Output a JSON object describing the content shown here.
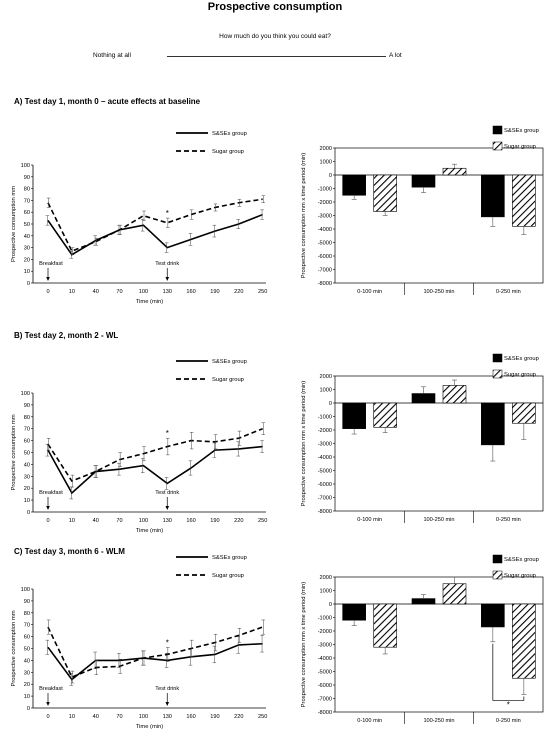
{
  "header": {
    "title": "Prospective consumption",
    "question": "How much do you think you could eat?",
    "scale_left": "Nothing at all",
    "scale_right": "A lot"
  },
  "panels": [
    {
      "title": "A) Test day 1, month 0 – acute effects at baseline"
    },
    {
      "title": "B) Test day 2, month 2 - WL"
    },
    {
      "title": "C) Test day 3, month 6 - WLM"
    }
  ],
  "colors": {
    "s_ses": "#000000",
    "sugar": "#000000"
  },
  "chart_data": [
    {
      "type": "line",
      "panel": "A",
      "x": [
        "0",
        "10",
        "40",
        "70",
        "100",
        "130",
        "160",
        "190",
        "220",
        "250"
      ],
      "xlabel": "Time (min)",
      "ylabel": "Prospective consumption mm",
      "ylim": [
        0,
        100
      ],
      "yticks": [
        0,
        10,
        20,
        30,
        40,
        50,
        60,
        70,
        80,
        90,
        100
      ],
      "series": [
        {
          "name": "S&SEs group",
          "style": "solid",
          "values": [
            53,
            24,
            36,
            45,
            49,
            30,
            37,
            44,
            50,
            58
          ],
          "errors": [
            4,
            3,
            4,
            4,
            5,
            4,
            5,
            5,
            4,
            4
          ]
        },
        {
          "name": "Sugar group",
          "style": "dashed",
          "values": [
            68,
            27,
            35,
            45,
            57,
            51,
            58,
            64,
            68,
            71
          ],
          "errors": [
            4,
            3,
            3,
            4,
            4,
            4,
            4,
            3,
            3,
            3
          ]
        }
      ],
      "markers": [
        {
          "label": "Breakfast",
          "x": "0"
        },
        {
          "label": "Test drink",
          "x": "130"
        }
      ],
      "significance": [
        {
          "x": "130",
          "symbol": "*"
        }
      ],
      "legend": "top-right"
    },
    {
      "type": "bar",
      "panel": "A",
      "categories": [
        "0-100 min",
        "100-250 min",
        "0-250 min"
      ],
      "ylabel": "Prospective consumption mm x time period (min)",
      "ylim": [
        -8000,
        2000
      ],
      "yticks": [
        2000,
        1000,
        0,
        -1000,
        -2000,
        -3000,
        -4000,
        -5000,
        -6000,
        -7000,
        -8000
      ],
      "series": [
        {
          "name": "S&SEs group",
          "fill": "solid",
          "values": [
            -1500,
            -900,
            -3100
          ],
          "errors": [
            300,
            400,
            700
          ]
        },
        {
          "name": "Sugar group",
          "fill": "hatched",
          "values": [
            -2700,
            500,
            -3800
          ],
          "errors": [
            300,
            300,
            600
          ]
        }
      ],
      "legend": "top-right"
    },
    {
      "type": "line",
      "panel": "B",
      "x": [
        "0",
        "10",
        "40",
        "70",
        "100",
        "130",
        "160",
        "190",
        "220",
        "250"
      ],
      "xlabel": "Time (min)",
      "ylabel": "Prospective consumption mm",
      "ylim": [
        0,
        100
      ],
      "yticks": [
        0,
        10,
        20,
        30,
        40,
        50,
        60,
        70,
        80,
        90,
        100
      ],
      "series": [
        {
          "name": "S&SEs group",
          "style": "solid",
          "values": [
            52,
            16,
            34,
            36,
            39,
            24,
            37,
            52,
            53,
            55
          ],
          "errors": [
            5,
            5,
            5,
            5,
            6,
            5,
            6,
            6,
            6,
            5
          ]
        },
        {
          "name": "Sugar group",
          "style": "dashed",
          "values": [
            57,
            26,
            34,
            44,
            49,
            55,
            60,
            59,
            62,
            70
          ],
          "errors": [
            5,
            5,
            5,
            6,
            6,
            7,
            7,
            6,
            6,
            5
          ]
        }
      ],
      "markers": [
        {
          "label": "Breakfast",
          "x": "0"
        },
        {
          "label": "Test drink",
          "x": "130"
        }
      ],
      "significance": [
        {
          "x": "130",
          "symbol": "*"
        }
      ],
      "legend": "top-right"
    },
    {
      "type": "bar",
      "panel": "B",
      "categories": [
        "0-100 min",
        "100-250 min",
        "0-250 min"
      ],
      "ylabel": "Prospective consumption mm x time period (min)",
      "ylim": [
        -8000,
        2000
      ],
      "yticks": [
        2000,
        1000,
        0,
        -1000,
        -2000,
        -3000,
        -4000,
        -5000,
        -6000,
        -7000,
        -8000
      ],
      "series": [
        {
          "name": "S&SEs group",
          "fill": "solid",
          "values": [
            -1900,
            700,
            -3100
          ],
          "errors": [
            400,
            500,
            1200
          ]
        },
        {
          "name": "Sugar group",
          "fill": "hatched",
          "values": [
            -1800,
            1300,
            -1500
          ],
          "errors": [
            400,
            400,
            1200
          ]
        }
      ],
      "legend": "top-right"
    },
    {
      "type": "line",
      "panel": "C",
      "x": [
        "0",
        "10",
        "40",
        "70",
        "100",
        "130",
        "160",
        "190",
        "220",
        "250"
      ],
      "xlabel": "Time (min)",
      "ylabel": "Prospective consumption mm",
      "ylim": [
        0,
        100
      ],
      "yticks": [
        0,
        10,
        20,
        30,
        40,
        50,
        60,
        70,
        80,
        90,
        100
      ],
      "series": [
        {
          "name": "S&SEs group",
          "style": "solid",
          "values": [
            51,
            24,
            40,
            40,
            42,
            40,
            43,
            45,
            53,
            54
          ],
          "errors": [
            6,
            5,
            7,
            6,
            6,
            6,
            7,
            7,
            7,
            7
          ]
        },
        {
          "name": "Sugar group",
          "style": "dashed",
          "values": [
            68,
            26,
            34,
            35,
            42,
            45,
            50,
            55,
            61,
            68
          ],
          "errors": [
            6,
            5,
            6,
            6,
            6,
            6,
            7,
            7,
            6,
            6
          ]
        }
      ],
      "markers": [
        {
          "label": "Breakfast",
          "x": "0"
        },
        {
          "label": "Test drink",
          "x": "130"
        }
      ],
      "significance": [
        {
          "x": "130",
          "symbol": "*"
        }
      ],
      "legend": "top-right"
    },
    {
      "type": "bar",
      "panel": "C",
      "categories": [
        "0-100 min",
        "100-250 min",
        "0-250 min"
      ],
      "ylabel": "Prospective consumption mm x time period (min)",
      "ylim": [
        -8000,
        2000
      ],
      "yticks": [
        2000,
        1000,
        0,
        -1000,
        -2000,
        -3000,
        -4000,
        -5000,
        -6000,
        -7000,
        -8000
      ],
      "series": [
        {
          "name": "S&SEs group",
          "fill": "solid",
          "values": [
            -1200,
            400,
            -1700
          ],
          "errors": [
            400,
            300,
            1100
          ]
        },
        {
          "name": "Sugar group",
          "fill": "hatched",
          "values": [
            -3200,
            1500,
            -5500
          ],
          "errors": [
            500,
            500,
            1200
          ]
        }
      ],
      "significance": [
        {
          "between": "0-250 min",
          "symbol": "*"
        }
      ],
      "legend": "top-right"
    }
  ]
}
